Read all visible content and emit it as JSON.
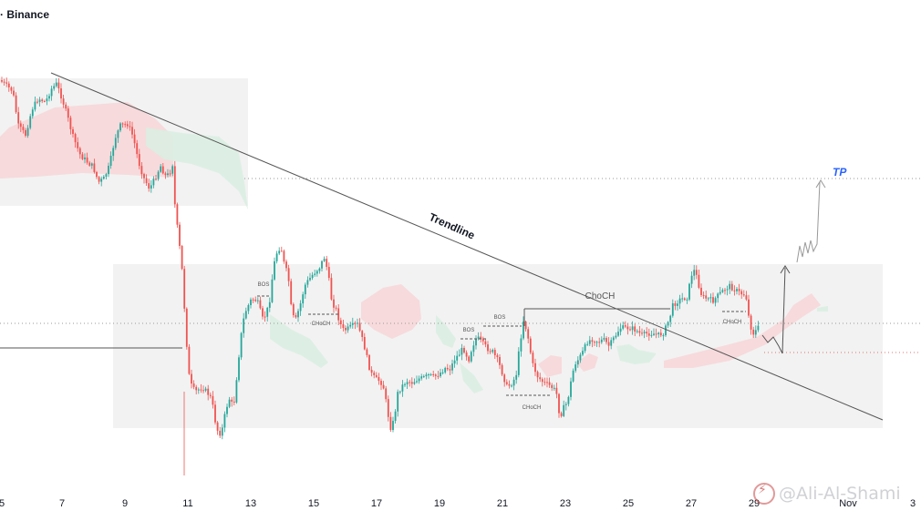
{
  "header": {
    "source_label": "· Binance"
  },
  "watermark": {
    "text": "@Ali-Al-Shami"
  },
  "colors": {
    "up": "#26a69a",
    "down": "#ef5350",
    "trendline": "#555555",
    "tp_text": "#2962ff",
    "zone_fill": "#eeeeee",
    "cloud_green": "#d9efe2",
    "cloud_red": "#f8d6d8"
  },
  "chart_data": {
    "type": "candlestick",
    "title": "",
    "xlabel": "",
    "ylabel": "",
    "x_axis_ticks": [
      "5",
      "7",
      "9",
      "11",
      "13",
      "15",
      "17",
      "19",
      "21",
      "23",
      "25",
      "27",
      "29",
      "Nov",
      "3"
    ],
    "price_shape": [
      [
        0,
        0.3
      ],
      [
        2,
        0.46
      ],
      [
        4,
        0.85
      ],
      [
        6,
        0.79
      ],
      [
        8,
        0.99
      ],
      [
        10,
        0.36
      ],
      [
        12,
        0.38
      ],
      [
        14,
        -0.19
      ],
      [
        16,
        -0.34
      ],
      [
        18,
        0.82
      ],
      [
        20,
        0.79
      ],
      [
        22,
        0.46
      ],
      [
        24,
        0.11
      ],
      [
        26,
        -0.45
      ],
      [
        28,
        -1.02
      ],
      [
        30,
        -0.82
      ],
      [
        32,
        -0.36
      ],
      [
        34,
        -0.38
      ],
      [
        36,
        -0.16
      ],
      [
        38,
        -0.18
      ],
      [
        40,
        -0.07
      ],
      [
        42,
        -0.35
      ],
      [
        44,
        0.31
      ],
      [
        46,
        0.29
      ],
      [
        48,
        0.11
      ],
      [
        50,
        0.52
      ],
      [
        52,
        0.85
      ],
      [
        54,
        0.77
      ],
      [
        56,
        0.79
      ],
      [
        58,
        0.96
      ],
      [
        60,
        0.97
      ]
    ],
    "annotations": [
      {
        "kind": "label",
        "text": "Trendline"
      },
      {
        "kind": "label",
        "text": "TP"
      },
      {
        "kind": "label",
        "text": "ChoCH"
      },
      {
        "kind": "label",
        "text": "BOS"
      },
      {
        "kind": "label",
        "text": "BOS"
      },
      {
        "kind": "label",
        "text": "BOS"
      },
      {
        "kind": "label",
        "text": "CHoCH"
      },
      {
        "kind": "label",
        "text": "CHoCH"
      },
      {
        "kind": "label",
        "text": "CHoCH"
      }
    ],
    "grid": false,
    "legend": "none"
  }
}
